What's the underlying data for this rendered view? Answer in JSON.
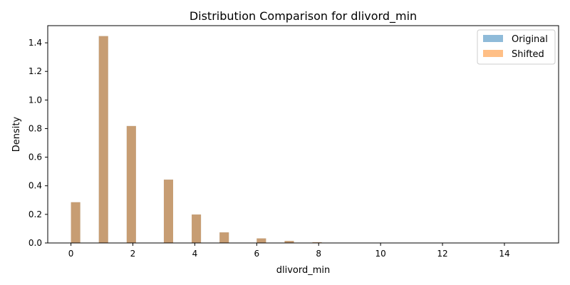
{
  "chart_data": {
    "type": "bar",
    "title": "Distribution Comparison for dlivord_min",
    "xlabel": "dlivord_min",
    "ylabel": "Density",
    "xlim": [
      -0.75,
      15.75
    ],
    "ylim": [
      0,
      1.52
    ],
    "xticks": [
      0,
      2,
      4,
      6,
      8,
      10,
      12,
      14
    ],
    "yticks": [
      0.0,
      0.2,
      0.4,
      0.6,
      0.8,
      1.0,
      1.2,
      1.4
    ],
    "xtick_labels": [
      "0",
      "2",
      "4",
      "6",
      "8",
      "10",
      "12",
      "14"
    ],
    "ytick_labels": [
      "0.0",
      "0.2",
      "0.4",
      "0.6",
      "0.8",
      "1.0",
      "1.2",
      "1.4"
    ],
    "grid": false,
    "legend_position": "top-right",
    "bin_width": 0.3,
    "series": [
      {
        "name": "Original",
        "color": "#1f77b4",
        "opacity": 0.5,
        "bins": [
          {
            "x": 0.15,
            "value": 0.285
          },
          {
            "x": 1.05,
            "value": 1.447
          },
          {
            "x": 1.95,
            "value": 0.818
          },
          {
            "x": 3.15,
            "value": 0.443
          },
          {
            "x": 4.05,
            "value": 0.199
          },
          {
            "x": 4.95,
            "value": 0.074
          },
          {
            "x": 6.15,
            "value": 0.032
          },
          {
            "x": 7.05,
            "value": 0.014
          },
          {
            "x": 7.95,
            "value": 0.005
          },
          {
            "x": 9.15,
            "value": 0.002
          },
          {
            "x": 10.05,
            "value": 0.001
          },
          {
            "x": 10.95,
            "value": 0.0005
          },
          {
            "x": 12.15,
            "value": 0.0003
          },
          {
            "x": 13.05,
            "value": 0.0002
          },
          {
            "x": 13.95,
            "value": 0.0001
          },
          {
            "x": 15.15,
            "value": 0.0001
          }
        ]
      },
      {
        "name": "Shifted",
        "color": "#ff7f0e",
        "opacity": 0.5,
        "bins": [
          {
            "x": 0.15,
            "value": 0.285
          },
          {
            "x": 1.05,
            "value": 1.447
          },
          {
            "x": 1.95,
            "value": 0.818
          },
          {
            "x": 3.15,
            "value": 0.443
          },
          {
            "x": 4.05,
            "value": 0.199
          },
          {
            "x": 4.95,
            "value": 0.074
          },
          {
            "x": 6.15,
            "value": 0.032
          },
          {
            "x": 7.05,
            "value": 0.014
          },
          {
            "x": 7.95,
            "value": 0.005
          },
          {
            "x": 9.15,
            "value": 0.002
          },
          {
            "x": 10.05,
            "value": 0.001
          },
          {
            "x": 10.95,
            "value": 0.0005
          },
          {
            "x": 12.15,
            "value": 0.0003
          },
          {
            "x": 13.05,
            "value": 0.0002
          },
          {
            "x": 13.95,
            "value": 0.0001
          },
          {
            "x": 15.15,
            "value": 0.0001
          }
        ]
      }
    ]
  }
}
